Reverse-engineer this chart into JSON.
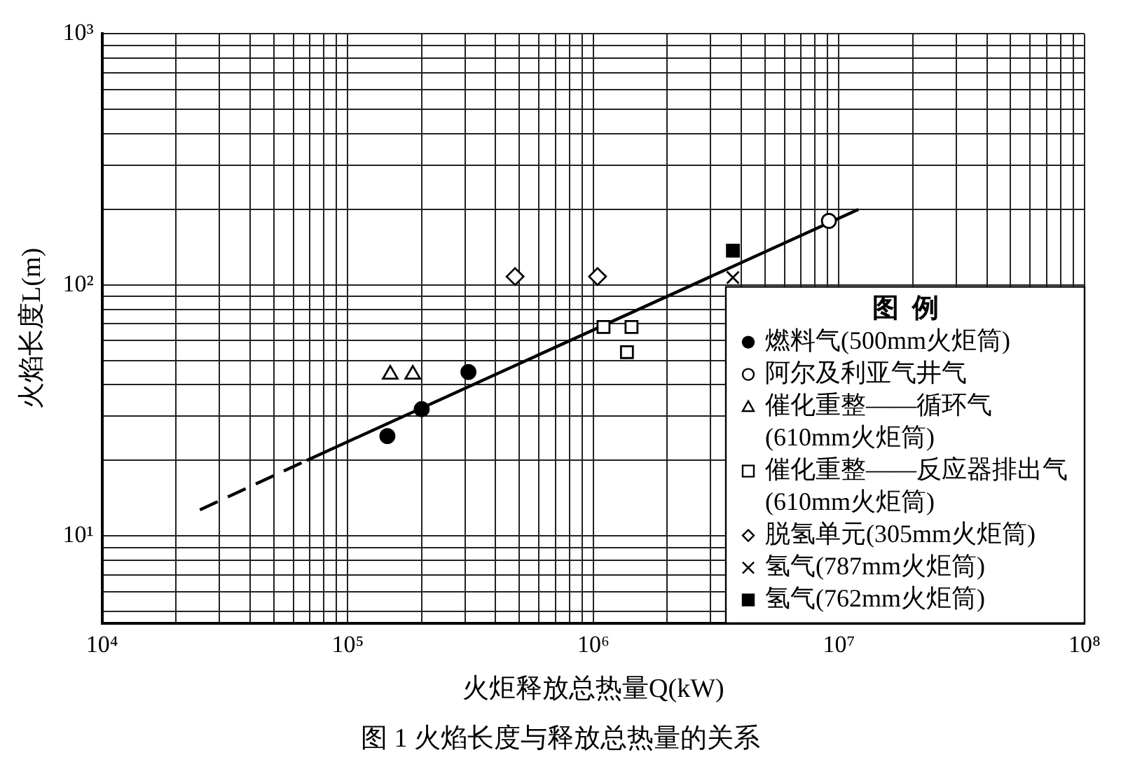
{
  "chart_data": {
    "type": "scatter",
    "title": "图 1  火焰长度与释放总热量的关系",
    "xlabel": "火炬释放总热量Q(kW)",
    "ylabel": "火焰长度L(m)",
    "legend_title": "图  例",
    "log": "xy",
    "grid": true,
    "legend": "bottom right",
    "xlim": [
      10000,
      100000000
    ],
    "ylim": [
      4.5,
      1000
    ],
    "xticks": [
      {
        "value": 10000,
        "label": "10⁴"
      },
      {
        "value": 20000,
        "label": null
      },
      {
        "value": 30000,
        "label": null
      },
      {
        "value": 40000,
        "label": null
      },
      {
        "value": 50000,
        "label": null
      },
      {
        "value": 60000,
        "label": null
      },
      {
        "value": 70000,
        "label": null
      },
      {
        "value": 80000,
        "label": null
      },
      {
        "value": 90000,
        "label": null
      },
      {
        "value": 100000,
        "label": "10⁵"
      },
      {
        "value": 200000,
        "label": null
      },
      {
        "value": 300000,
        "label": null
      },
      {
        "value": 400000,
        "label": null
      },
      {
        "value": 500000,
        "label": null
      },
      {
        "value": 600000,
        "label": null
      },
      {
        "value": 700000,
        "label": null
      },
      {
        "value": 800000,
        "label": null
      },
      {
        "value": 900000,
        "label": null
      },
      {
        "value": 1000000,
        "label": "10⁶"
      },
      {
        "value": 2000000,
        "label": null
      },
      {
        "value": 3000000,
        "label": null
      },
      {
        "value": 4000000,
        "label": null
      },
      {
        "value": 5000000,
        "label": null
      },
      {
        "value": 6000000,
        "label": null
      },
      {
        "value": 7000000,
        "label": null
      },
      {
        "value": 8000000,
        "label": null
      },
      {
        "value": 9000000,
        "label": null
      },
      {
        "value": 10000000,
        "label": "10⁷"
      },
      {
        "value": 20000000,
        "label": null
      },
      {
        "value": 30000000,
        "label": null
      },
      {
        "value": 40000000,
        "label": null
      },
      {
        "value": 50000000,
        "label": null
      },
      {
        "value": 60000000,
        "label": null
      },
      {
        "value": 70000000,
        "label": null
      },
      {
        "value": 80000000,
        "label": null
      },
      {
        "value": 90000000,
        "label": null
      },
      {
        "value": 100000000,
        "label": "10⁸"
      }
    ],
    "yticks": [
      {
        "value": 5,
        "label": null
      },
      {
        "value": 6,
        "label": null
      },
      {
        "value": 7,
        "label": null
      },
      {
        "value": 8,
        "label": null
      },
      {
        "value": 9,
        "label": null
      },
      {
        "value": 10,
        "label": "10¹"
      },
      {
        "value": 20,
        "label": null
      },
      {
        "value": 30,
        "label": null
      },
      {
        "value": 40,
        "label": null
      },
      {
        "value": 50,
        "label": null
      },
      {
        "value": 60,
        "label": null
      },
      {
        "value": 70,
        "label": null
      },
      {
        "value": 80,
        "label": null
      },
      {
        "value": 90,
        "label": null
      },
      {
        "value": 100,
        "label": "10²"
      },
      {
        "value": 200,
        "label": null
      },
      {
        "value": 300,
        "label": null
      },
      {
        "value": 400,
        "label": null
      },
      {
        "value": 500,
        "label": null
      },
      {
        "value": 600,
        "label": null
      },
      {
        "value": 700,
        "label": null
      },
      {
        "value": 800,
        "label": null
      },
      {
        "value": 900,
        "label": null
      },
      {
        "value": 1000,
        "label": "10³"
      }
    ],
    "series": [
      {
        "name": "燃料气(500mm火炬筒)",
        "color": "#000000",
        "marker": "circle",
        "x": [
          145000,
          200000,
          310000
        ],
        "values": [
          25,
          32,
          45
        ]
      },
      {
        "name": "阿尔及利亚气井气",
        "color": "#000000",
        "marker": "circle",
        "colors": [
          "#ffffff"
        ],
        "x": [
          9100000
        ],
        "values": [
          180
        ]
      },
      {
        "name": "催化重整——循环气(610mm火炬筒)",
        "color": "#000000",
        "marker": "triangle",
        "colors": [
          "#ffffff",
          "#ffffff"
        ],
        "x": [
          149000,
          184000
        ],
        "values": [
          44,
          44
        ]
      },
      {
        "name": "催化重整——反应器排出气(610mm火炬筒)",
        "color": "#000000",
        "marker": "square",
        "colors": [
          "#ffffff",
          "#ffffff",
          "#ffffff"
        ],
        "x": [
          1100000,
          1430000,
          1370000
        ],
        "values": [
          68,
          68,
          54
        ]
      },
      {
        "name": "脱氢单元(305mm火炬筒)",
        "color": "#000000",
        "marker": "diamond",
        "colors": [
          "#ffffff",
          "#ffffff"
        ],
        "x": [
          480000,
          1040000
        ],
        "values": [
          108,
          108
        ]
      },
      {
        "name": "氢气(787mm火炬筒)",
        "color": "#000000",
        "marker": "cross",
        "x": [
          3700000
        ],
        "values": [
          107
        ]
      },
      {
        "name": "氢气(762mm火炬筒)",
        "color": "#000000",
        "marker": "square",
        "x": [
          3700000
        ],
        "values": [
          137
        ]
      },
      {
        "type": "line",
        "color": "#000000",
        "marker": "none",
        "line_style": "dashed",
        "x": [
          25000,
          68000
        ],
        "values": [
          12.7,
          20
        ]
      },
      {
        "type": "line",
        "color": "#000000",
        "marker": "none",
        "line_style": "solid",
        "x": [
          68000,
          12000000
        ],
        "values": [
          20,
          200
        ]
      }
    ]
  }
}
